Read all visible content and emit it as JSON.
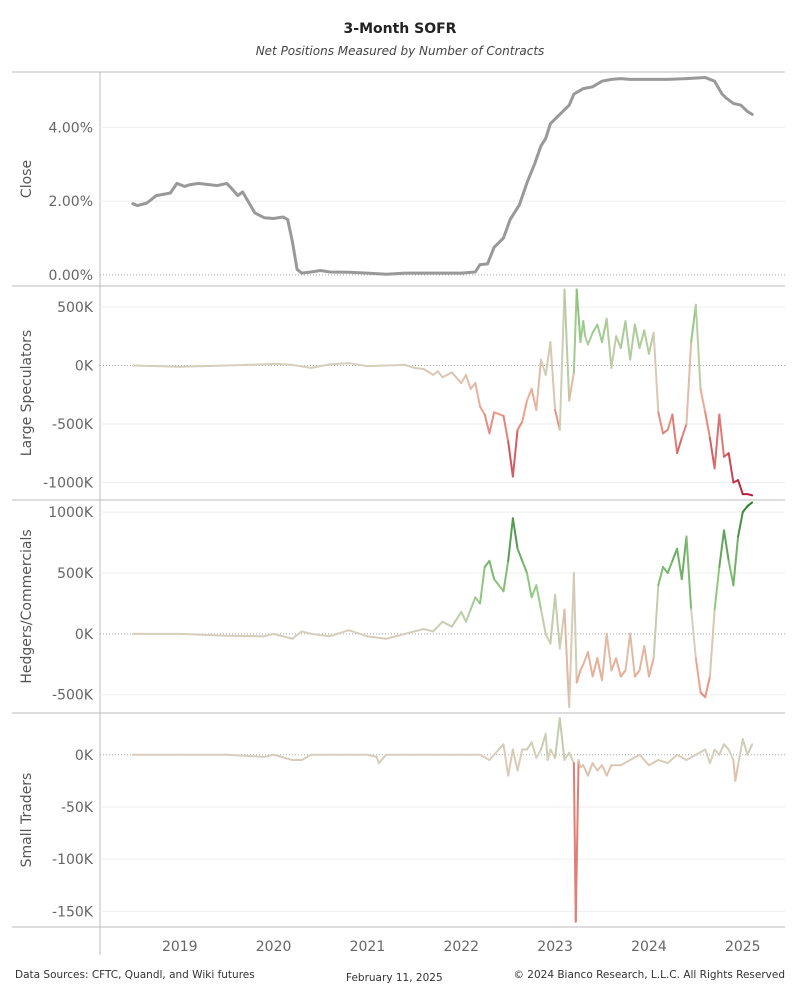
{
  "title": "3-Month SOFR",
  "subtitle": "Net Positions Measured by Number of Contracts",
  "footer": {
    "sources": "Data Sources: CFTC, Quandl, and Wiki futures",
    "date": "February 11, 2025",
    "copyright": "© 2024 Bianco Research, L.L.C. All Rights Reserved"
  },
  "colors": {
    "close_line": "#999999",
    "positive_strong": "#2e7d32",
    "positive_light": "#8fc97f",
    "neutral": "#d6cfbd",
    "negative_light": "#f0a08a",
    "negative_strong": "#b71c3c",
    "axis": "#bbbbbb",
    "zero_line": "#aaaaaa"
  },
  "chart_data": [
    {
      "type": "line",
      "ylabel": "Close",
      "ylim": [
        -0.003,
        0.055
      ],
      "yticks": [
        0,
        0.02,
        0.04
      ],
      "ytick_labels": [
        "0.00%",
        "2.00%",
        "4.00%"
      ],
      "x": [
        2018.5,
        2018.55,
        2018.65,
        2018.75,
        2018.9,
        2018.97,
        2019.05,
        2019.1,
        2019.2,
        2019.3,
        2019.4,
        2019.5,
        2019.55,
        2019.62,
        2019.67,
        2019.75,
        2019.8,
        2019.9,
        2020.0,
        2020.1,
        2020.15,
        2020.2,
        2020.25,
        2020.3,
        2020.4,
        2020.5,
        2020.6,
        2020.8,
        2021.0,
        2021.2,
        2021.4,
        2021.6,
        2021.8,
        2022.0,
        2022.15,
        2022.2,
        2022.28,
        2022.35,
        2022.45,
        2022.52,
        2022.62,
        2022.7,
        2022.78,
        2022.85,
        2022.9,
        2022.95,
        2023.05,
        2023.15,
        2023.2,
        2023.3,
        2023.4,
        2023.5,
        2023.6,
        2023.7,
        2023.8,
        2024.0,
        2024.2,
        2024.4,
        2024.6,
        2024.7,
        2024.78,
        2024.82,
        2024.9,
        2024.98,
        2025.05,
        2025.1
      ],
      "values": [
        0.0193,
        0.0188,
        0.0195,
        0.0215,
        0.0222,
        0.0248,
        0.024,
        0.0244,
        0.0248,
        0.0245,
        0.0242,
        0.0248,
        0.0235,
        0.0215,
        0.0225,
        0.019,
        0.0168,
        0.0155,
        0.0153,
        0.0157,
        0.015,
        0.009,
        0.0015,
        0.0005,
        0.0008,
        0.0012,
        0.0008,
        0.0007,
        0.0005,
        0.0002,
        0.0005,
        0.0005,
        0.0005,
        0.0005,
        0.0008,
        0.0028,
        0.003,
        0.0075,
        0.01,
        0.015,
        0.019,
        0.025,
        0.03,
        0.035,
        0.037,
        0.041,
        0.0435,
        0.046,
        0.049,
        0.0505,
        0.051,
        0.0525,
        0.053,
        0.0532,
        0.053,
        0.053,
        0.053,
        0.0532,
        0.0535,
        0.0525,
        0.049,
        0.048,
        0.0465,
        0.046,
        0.0443,
        0.0435
      ],
      "line_color": "#999999"
    },
    {
      "type": "line",
      "ylabel": "Large Speculators",
      "ylim": [
        -1150000,
        680000
      ],
      "yticks": [
        -1000000,
        -500000,
        0,
        500000
      ],
      "ytick_labels": [
        "-1000K",
        "-500K",
        "0K",
        "500K"
      ],
      "x": [
        2018.5,
        2019.0,
        2019.5,
        2019.9,
        2020.0,
        2020.2,
        2020.4,
        2020.6,
        2020.8,
        2021.0,
        2021.2,
        2021.4,
        2021.5,
        2021.6,
        2021.7,
        2021.75,
        2021.8,
        2021.9,
        2022.0,
        2022.05,
        2022.1,
        2022.15,
        2022.2,
        2022.25,
        2022.3,
        2022.35,
        2022.45,
        2022.5,
        2022.55,
        2022.6,
        2022.65,
        2022.7,
        2022.75,
        2022.8,
        2022.85,
        2022.9,
        2022.95,
        2023.0,
        2023.05,
        2023.1,
        2023.15,
        2023.2,
        2023.23,
        2023.27,
        2023.3,
        2023.32,
        2023.35,
        2023.4,
        2023.45,
        2023.5,
        2023.55,
        2023.6,
        2023.65,
        2023.7,
        2023.75,
        2023.8,
        2023.85,
        2023.9,
        2023.95,
        2024.0,
        2024.05,
        2024.1,
        2024.15,
        2024.2,
        2024.25,
        2024.3,
        2024.35,
        2024.4,
        2024.45,
        2024.5,
        2024.55,
        2024.6,
        2024.65,
        2024.7,
        2024.75,
        2024.8,
        2024.85,
        2024.9,
        2024.95,
        2025.0,
        2025.05,
        2025.1
      ],
      "values": [
        0,
        -10000,
        0,
        10000,
        15000,
        5000,
        -20000,
        10000,
        20000,
        -5000,
        0,
        5000,
        -20000,
        -30000,
        -80000,
        -50000,
        -100000,
        -60000,
        -150000,
        -80000,
        -200000,
        -150000,
        -350000,
        -420000,
        -580000,
        -400000,
        -430000,
        -650000,
        -950000,
        -550000,
        -480000,
        -300000,
        -200000,
        -380000,
        50000,
        -80000,
        200000,
        -380000,
        -550000,
        650000,
        -300000,
        -60000,
        650000,
        200000,
        380000,
        250000,
        180000,
        280000,
        350000,
        200000,
        400000,
        -20000,
        250000,
        150000,
        380000,
        50000,
        350000,
        150000,
        300000,
        100000,
        280000,
        -400000,
        -580000,
        -550000,
        -420000,
        -750000,
        -620000,
        -500000,
        200000,
        520000,
        -200000,
        -400000,
        -620000,
        -880000,
        -420000,
        -780000,
        -750000,
        -1000000,
        -980000,
        -1100000,
        -1100000,
        -1110000
      ]
    },
    {
      "type": "line",
      "ylabel": "Hedgers/Commercials",
      "ylim": [
        -650000,
        1100000
      ],
      "yticks": [
        -500000,
        0,
        500000,
        1000000
      ],
      "ytick_labels": [
        "-500K",
        "0K",
        "500K",
        "1000K"
      ],
      "x": [
        2018.5,
        2019.0,
        2019.5,
        2019.9,
        2020.0,
        2020.2,
        2020.3,
        2020.4,
        2020.6,
        2020.8,
        2021.0,
        2021.2,
        2021.4,
        2021.5,
        2021.6,
        2021.7,
        2021.8,
        2021.9,
        2022.0,
        2022.05,
        2022.1,
        2022.15,
        2022.2,
        2022.25,
        2022.3,
        2022.35,
        2022.4,
        2022.45,
        2022.5,
        2022.55,
        2022.6,
        2022.65,
        2022.7,
        2022.75,
        2022.8,
        2022.85,
        2022.9,
        2022.95,
        2023.0,
        2023.05,
        2023.1,
        2023.15,
        2023.2,
        2023.23,
        2023.27,
        2023.3,
        2023.35,
        2023.4,
        2023.45,
        2023.5,
        2023.55,
        2023.6,
        2023.65,
        2023.7,
        2023.75,
        2023.8,
        2023.85,
        2023.9,
        2023.95,
        2024.0,
        2024.05,
        2024.1,
        2024.15,
        2024.2,
        2024.25,
        2024.3,
        2024.35,
        2024.4,
        2024.45,
        2024.5,
        2024.55,
        2024.6,
        2024.65,
        2024.7,
        2024.75,
        2024.8,
        2024.85,
        2024.9,
        2024.95,
        2025.0,
        2025.05,
        2025.1
      ],
      "values": [
        0,
        0,
        -15000,
        -20000,
        0,
        -40000,
        20000,
        0,
        -20000,
        30000,
        -20000,
        -40000,
        0,
        20000,
        40000,
        20000,
        100000,
        60000,
        180000,
        100000,
        200000,
        300000,
        250000,
        550000,
        600000,
        450000,
        400000,
        350000,
        600000,
        950000,
        700000,
        600000,
        500000,
        300000,
        400000,
        200000,
        0,
        -80000,
        320000,
        -120000,
        200000,
        -600000,
        500000,
        -400000,
        -300000,
        -250000,
        -150000,
        -350000,
        -200000,
        -380000,
        0,
        -300000,
        -200000,
        -350000,
        -300000,
        0,
        -350000,
        -300000,
        -100000,
        -350000,
        -200000,
        400000,
        550000,
        500000,
        600000,
        700000,
        450000,
        800000,
        200000,
        -200000,
        -480000,
        -520000,
        -350000,
        200000,
        550000,
        850000,
        600000,
        400000,
        800000,
        1000000,
        1050000,
        1080000
      ]
    },
    {
      "type": "line",
      "ylabel": "Small Traders",
      "ylim": [
        -165000,
        40000
      ],
      "yticks": [
        -150000,
        -100000,
        -50000,
        0
      ],
      "ytick_labels": [
        "-150K",
        "-100K",
        "-50K",
        "0K"
      ],
      "x": [
        2018.5,
        2019.0,
        2019.5,
        2019.9,
        2020.0,
        2020.2,
        2020.3,
        2020.4,
        2020.6,
        2020.8,
        2021.0,
        2021.1,
        2021.12,
        2021.2,
        2021.4,
        2021.6,
        2021.8,
        2022.0,
        2022.2,
        2022.3,
        2022.4,
        2022.45,
        2022.5,
        2022.55,
        2022.6,
        2022.65,
        2022.7,
        2022.75,
        2022.8,
        2022.85,
        2022.9,
        2022.92,
        2022.95,
        2023.0,
        2023.05,
        2023.1,
        2023.15,
        2023.2,
        2023.22,
        2023.25,
        2023.27,
        2023.3,
        2023.35,
        2023.4,
        2023.45,
        2023.5,
        2023.55,
        2023.6,
        2023.7,
        2023.8,
        2023.9,
        2024.0,
        2024.1,
        2024.2,
        2024.3,
        2024.4,
        2024.5,
        2024.6,
        2024.65,
        2024.7,
        2024.75,
        2024.8,
        2024.85,
        2024.9,
        2024.92,
        2024.95,
        2025.0,
        2025.05,
        2025.1
      ],
      "values": [
        0,
        0,
        0,
        -2000,
        0,
        -5000,
        -5000,
        0,
        0,
        0,
        0,
        -2000,
        -8000,
        0,
        0,
        0,
        0,
        0,
        0,
        -5000,
        5000,
        10000,
        -20000,
        5000,
        -15000,
        5000,
        5000,
        12000,
        -3000,
        5000,
        20000,
        -5000,
        5000,
        -3000,
        35000,
        -5000,
        2000,
        -8000,
        -160000,
        -5000,
        -12000,
        -10000,
        -20000,
        -8000,
        -15000,
        -10000,
        -20000,
        -10000,
        -10000,
        -5000,
        0,
        -10000,
        -5000,
        -8000,
        0,
        -5000,
        0,
        5000,
        -8000,
        5000,
        0,
        10000,
        5000,
        -5000,
        -25000,
        -10000,
        15000,
        0,
        10000
      ]
    }
  ],
  "x_axis": {
    "ticks": [
      2019,
      2020,
      2021,
      2022,
      2023,
      2024,
      2025
    ],
    "labels": [
      "2019",
      "2020",
      "2021",
      "2022",
      "2023",
      "2024",
      "2025"
    ],
    "range": [
      2018.15,
      2025.45
    ]
  }
}
